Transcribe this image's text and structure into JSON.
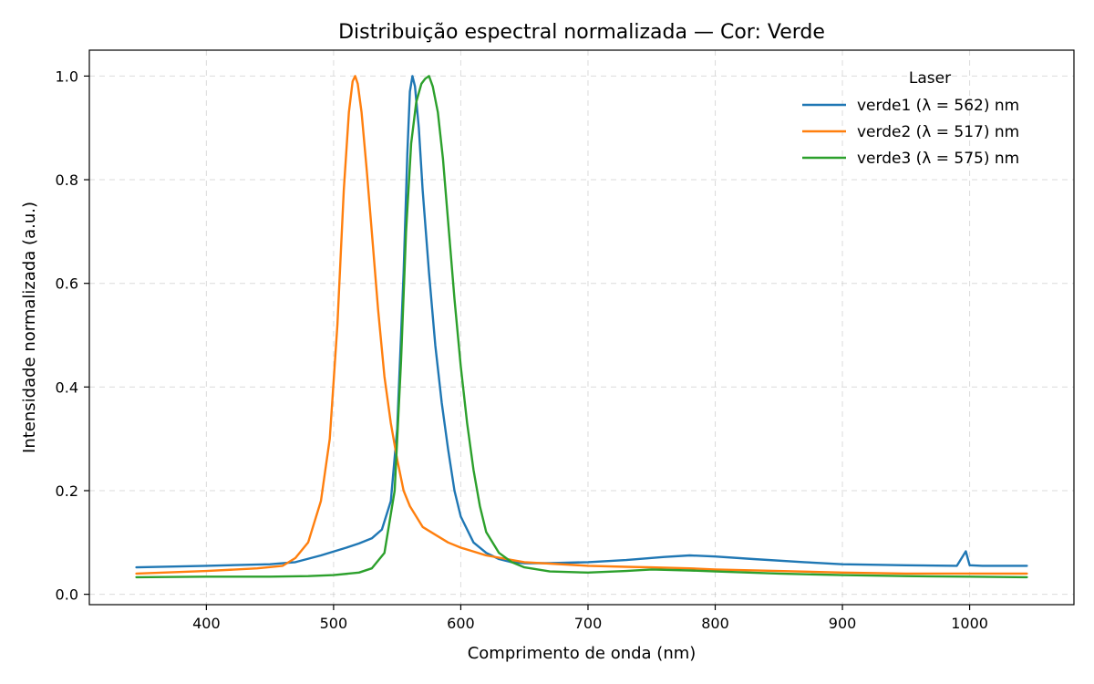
{
  "chart_data": {
    "type": "line",
    "title": "Distribuição espectral normalizada — Cor: Verde",
    "xlabel": "Comprimento de onda (nm)",
    "ylabel": "Intensidade normalizada (a.u.)",
    "xlim": [
      308,
      1082
    ],
    "ylim": [
      -0.02,
      1.05
    ],
    "xticks": [
      400,
      500,
      600,
      700,
      800,
      900,
      1000
    ],
    "xtick_labels": [
      "400",
      "500",
      "600",
      "700",
      "800",
      "900",
      "1000"
    ],
    "yticks": [
      0.0,
      0.2,
      0.4,
      0.6,
      0.8,
      1.0
    ],
    "ytick_labels": [
      "0.0",
      "0.2",
      "0.4",
      "0.6",
      "0.8",
      "1.0"
    ],
    "grid": true,
    "legend": {
      "title": "Laser",
      "placement": "top-right"
    },
    "series": [
      {
        "name": "verde1 (λ = 562) nm",
        "color": "#1f77b4",
        "x": [
          345,
          400,
          450,
          470,
          490,
          510,
          520,
          530,
          538,
          545,
          550,
          555,
          558,
          560,
          562,
          564,
          567,
          570,
          575,
          580,
          585,
          590,
          595,
          600,
          610,
          620,
          630,
          640,
          650,
          670,
          700,
          730,
          760,
          780,
          800,
          830,
          870,
          900,
          950,
          990,
          997,
          1000,
          1010,
          1045
        ],
        "y": [
          0.052,
          0.055,
          0.058,
          0.062,
          0.075,
          0.09,
          0.098,
          0.108,
          0.125,
          0.18,
          0.32,
          0.62,
          0.85,
          0.97,
          1.0,
          0.98,
          0.9,
          0.78,
          0.62,
          0.48,
          0.37,
          0.28,
          0.2,
          0.15,
          0.1,
          0.08,
          0.068,
          0.062,
          0.06,
          0.06,
          0.062,
          0.066,
          0.072,
          0.075,
          0.073,
          0.068,
          0.062,
          0.058,
          0.056,
          0.055,
          0.083,
          0.056,
          0.055,
          0.055
        ]
      },
      {
        "name": "verde2 (λ = 517) nm",
        "color": "#ff7f0e",
        "x": [
          345,
          400,
          440,
          460,
          470,
          480,
          490,
          497,
          503,
          508,
          512,
          515,
          517,
          519,
          522,
          526,
          530,
          535,
          540,
          545,
          550,
          555,
          560,
          570,
          580,
          590,
          600,
          620,
          650,
          700,
          730,
          750,
          780,
          800,
          850,
          900,
          950,
          1000,
          1045
        ],
        "y": [
          0.04,
          0.045,
          0.05,
          0.055,
          0.07,
          0.1,
          0.18,
          0.3,
          0.52,
          0.78,
          0.93,
          0.99,
          1.0,
          0.985,
          0.93,
          0.82,
          0.7,
          0.55,
          0.42,
          0.33,
          0.26,
          0.2,
          0.17,
          0.13,
          0.115,
          0.1,
          0.09,
          0.075,
          0.062,
          0.055,
          0.053,
          0.052,
          0.05,
          0.048,
          0.045,
          0.042,
          0.04,
          0.04,
          0.04
        ]
      },
      {
        "name": "verde3 (λ = 575) nm",
        "color": "#2ca02c",
        "x": [
          345,
          400,
          450,
          480,
          500,
          520,
          530,
          540,
          548,
          553,
          557,
          561,
          565,
          569,
          572,
          575,
          578,
          582,
          586,
          590,
          595,
          600,
          605,
          610,
          615,
          620,
          630,
          640,
          650,
          670,
          700,
          730,
          750,
          780,
          800,
          850,
          900,
          950,
          1000,
          1045
        ],
        "y": [
          0.033,
          0.034,
          0.034,
          0.035,
          0.037,
          0.042,
          0.05,
          0.08,
          0.2,
          0.45,
          0.7,
          0.87,
          0.95,
          0.985,
          0.995,
          1.0,
          0.98,
          0.93,
          0.84,
          0.72,
          0.57,
          0.44,
          0.33,
          0.24,
          0.17,
          0.12,
          0.08,
          0.062,
          0.052,
          0.044,
          0.042,
          0.045,
          0.048,
          0.046,
          0.044,
          0.04,
          0.037,
          0.035,
          0.034,
          0.033
        ]
      }
    ]
  }
}
